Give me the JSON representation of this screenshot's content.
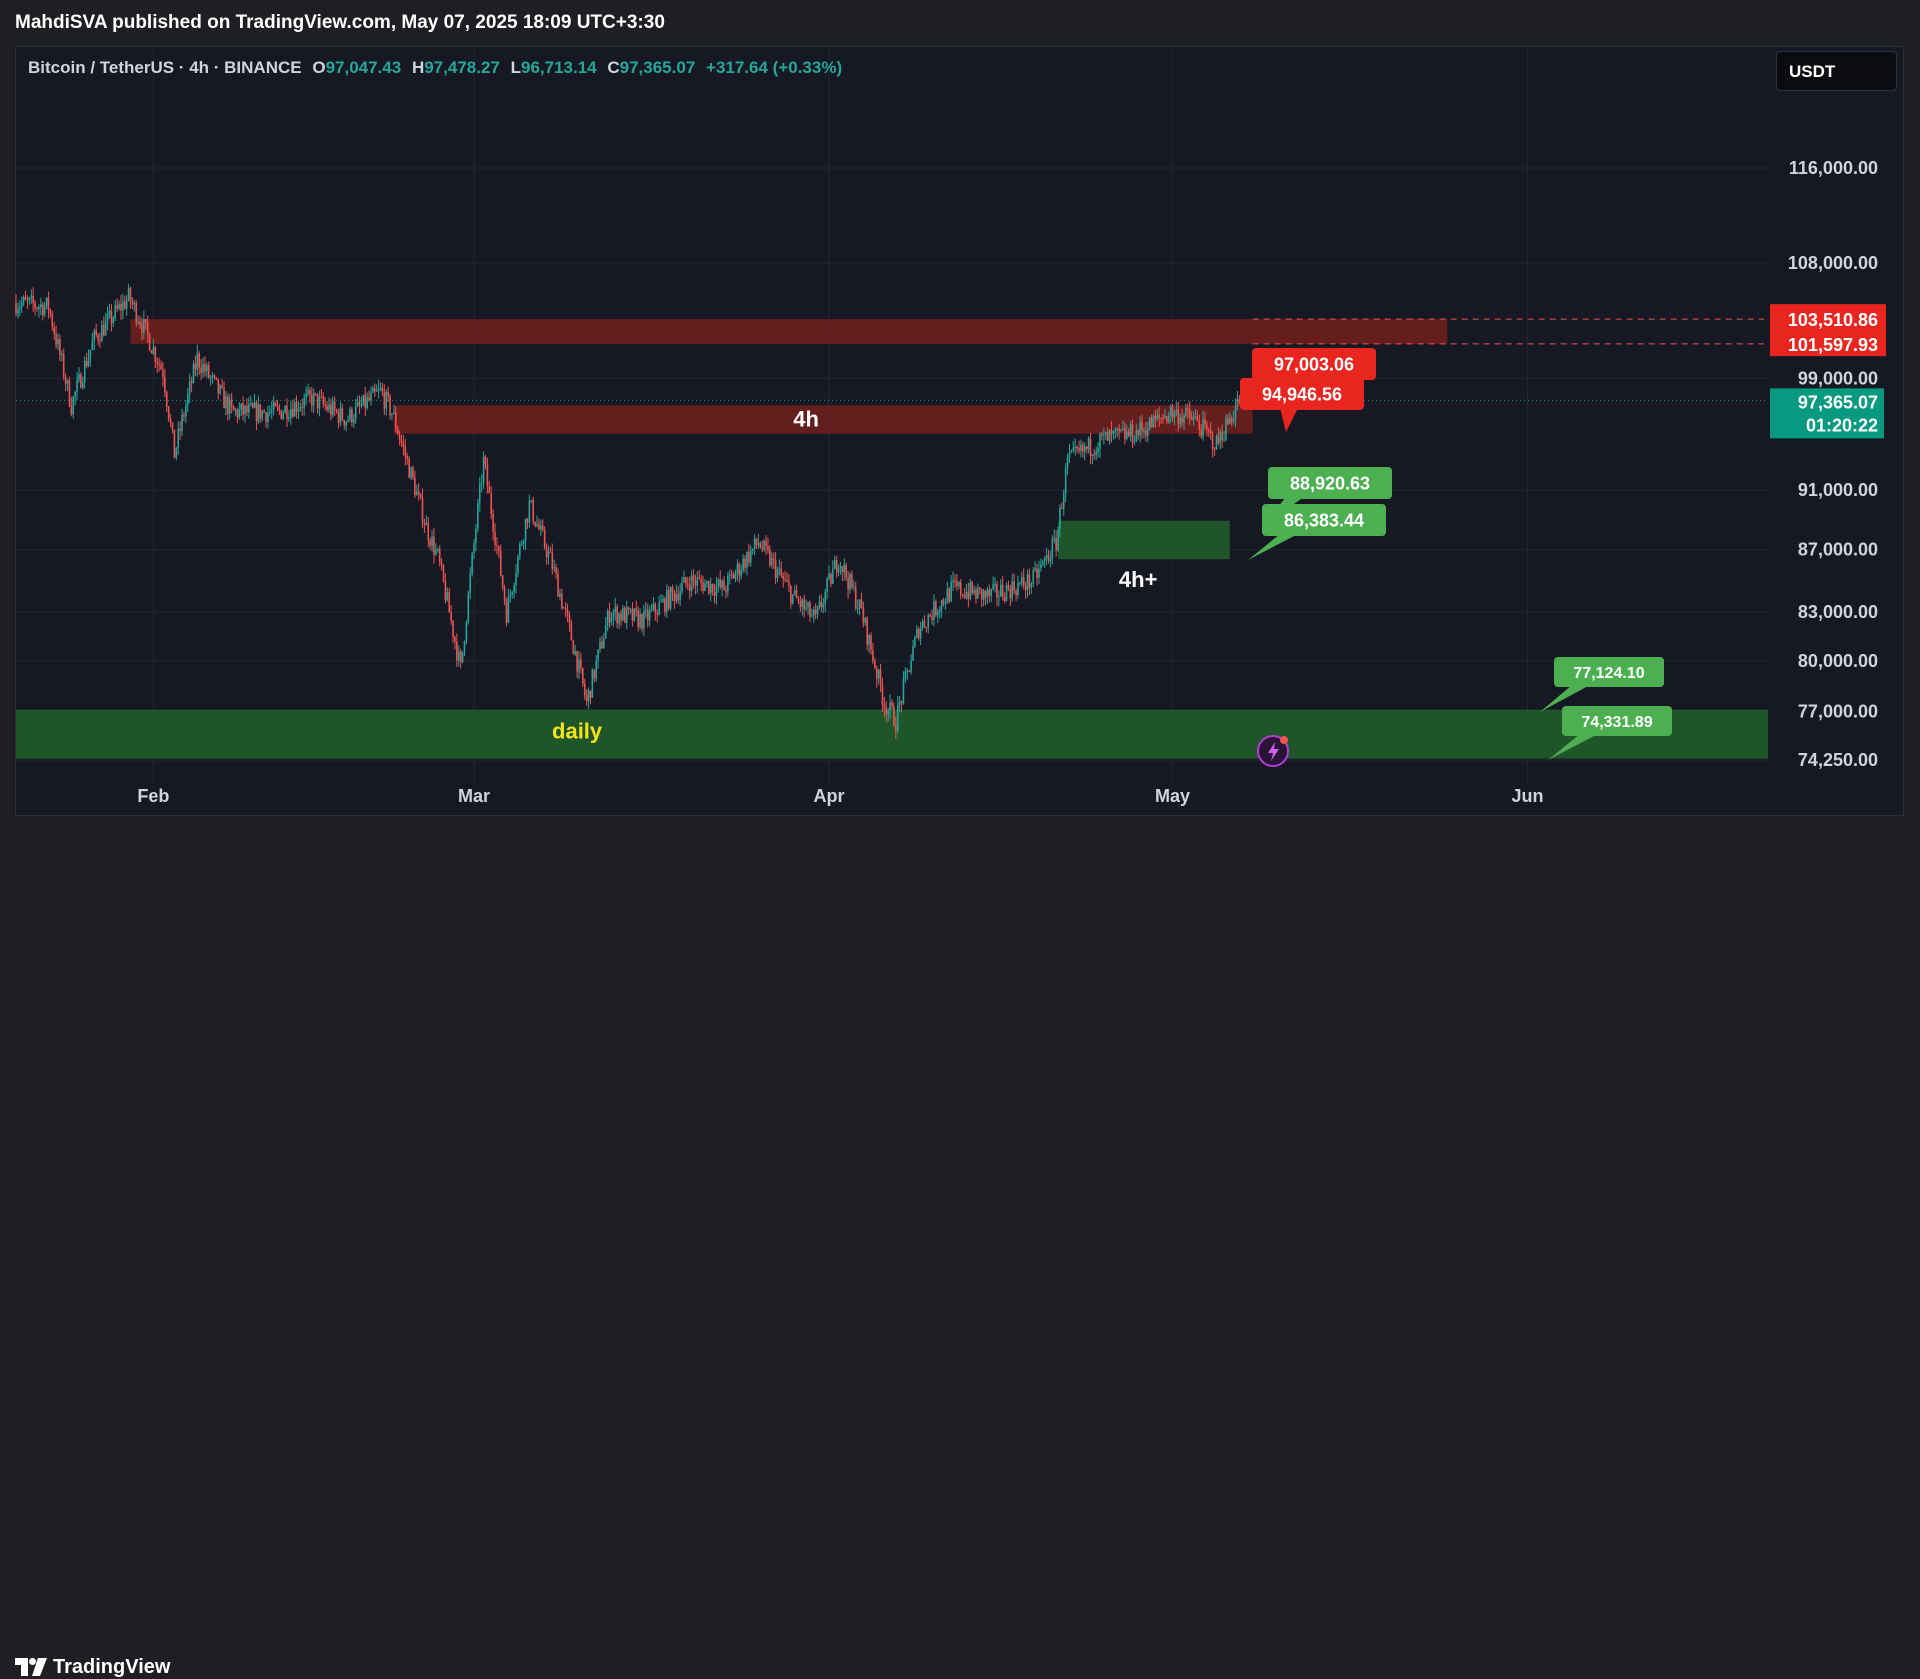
{
  "header": {
    "published": "MahdiSVA published on TradingView.com, May 07, 2025 18:09 UTC+3:30"
  },
  "symbol": {
    "name": "Bitcoin / TetherUS · 4h · BINANCE",
    "o_key": "O",
    "o": "97,047.43",
    "h_key": "H",
    "h": "97,478.27",
    "l_key": "L",
    "l": "96,713.14",
    "c_key": "C",
    "c": "97,365.07",
    "change": "+317.64 (+0.33%)"
  },
  "currency_button": "USDT",
  "footer": {
    "brand": "TradingView"
  },
  "colors": {
    "background": "#161923",
    "up": "#26a69a",
    "down": "#ef5350",
    "resistance_zone": "#6b1e1e",
    "support_zone": "#1f5a2a",
    "red_label": "#e8261f",
    "green_label": "#4caf50",
    "current_price": "#089981"
  },
  "chart_data": {
    "type": "candlestick",
    "title": "Bitcoin / TetherUS · 4h · BINANCE",
    "x_range": [
      "2025-01-20",
      "2025-06-22"
    ],
    "x_ticks": [
      {
        "label": "Feb",
        "date": "2025-02-01"
      },
      {
        "label": "Mar",
        "date": "2025-03-01"
      },
      {
        "label": "Apr",
        "date": "2025-04-01"
      },
      {
        "label": "May",
        "date": "2025-05-01"
      },
      {
        "label": "Jun",
        "date": "2025-06-01"
      }
    ],
    "y_ticks": [
      "116,000.00",
      "108,000.00",
      "99,000.00",
      "91,000.00",
      "87,000.00",
      "83,000.00",
      "80,000.00",
      "77,000.00",
      "74,250.00"
    ],
    "y_scale": "log",
    "grid": true,
    "price_path": [
      {
        "date": "2025-01-20",
        "price": 104800
      },
      {
        "date": "2025-01-23",
        "price": 104500
      },
      {
        "date": "2025-01-25",
        "price": 97000
      },
      {
        "date": "2025-01-27",
        "price": 102000
      },
      {
        "date": "2025-01-30",
        "price": 105200
      },
      {
        "date": "2025-01-31",
        "price": 103500
      },
      {
        "date": "2025-02-02",
        "price": 99500
      },
      {
        "date": "2025-02-03",
        "price": 93500
      },
      {
        "date": "2025-02-05",
        "price": 100500
      },
      {
        "date": "2025-02-08",
        "price": 96500
      },
      {
        "date": "2025-02-12",
        "price": 96500
      },
      {
        "date": "2025-02-15",
        "price": 97500
      },
      {
        "date": "2025-02-18",
        "price": 96000
      },
      {
        "date": "2025-02-21",
        "price": 98000
      },
      {
        "date": "2025-02-22",
        "price": 96500
      },
      {
        "date": "2025-02-25",
        "price": 88500
      },
      {
        "date": "2025-02-26",
        "price": 86500
      },
      {
        "date": "2025-02-28",
        "price": 79500
      },
      {
        "date": "2025-03-02",
        "price": 93000
      },
      {
        "date": "2025-03-04",
        "price": 83000
      },
      {
        "date": "2025-03-06",
        "price": 90000
      },
      {
        "date": "2025-03-08",
        "price": 86000
      },
      {
        "date": "2025-03-10",
        "price": 80500
      },
      {
        "date": "2025-03-11",
        "price": 77500
      },
      {
        "date": "2025-03-13",
        "price": 83000
      },
      {
        "date": "2025-03-16",
        "price": 82500
      },
      {
        "date": "2025-03-20",
        "price": 85000
      },
      {
        "date": "2025-03-23",
        "price": 84500
      },
      {
        "date": "2025-03-26",
        "price": 87500
      },
      {
        "date": "2025-03-29",
        "price": 84000
      },
      {
        "date": "2025-03-31",
        "price": 82500
      },
      {
        "date": "2025-04-02",
        "price": 86500
      },
      {
        "date": "2025-04-04",
        "price": 83000
      },
      {
        "date": "2025-04-06",
        "price": 77500
      },
      {
        "date": "2025-04-07",
        "price": 76500
      },
      {
        "date": "2025-04-09",
        "price": 82000
      },
      {
        "date": "2025-04-12",
        "price": 84500
      },
      {
        "date": "2025-04-15",
        "price": 84000
      },
      {
        "date": "2025-04-19",
        "price": 85000
      },
      {
        "date": "2025-04-21",
        "price": 87500
      },
      {
        "date": "2025-04-22",
        "price": 93000
      },
      {
        "date": "2025-04-25",
        "price": 94500
      },
      {
        "date": "2025-04-28",
        "price": 95000
      },
      {
        "date": "2025-05-01",
        "price": 96500
      },
      {
        "date": "2025-05-03",
        "price": 96000
      },
      {
        "date": "2025-05-05",
        "price": 94200
      },
      {
        "date": "2025-05-07",
        "price": 97365
      }
    ],
    "zones": [
      {
        "label": "",
        "from_date": "2025-01-30",
        "to_date": "2025-05-25",
        "low": 101597.93,
        "high": 103510.86,
        "kind": "resistance"
      },
      {
        "label": "4h",
        "from_date": "2025-02-22",
        "to_date": "2025-05-08",
        "low": 94946.56,
        "high": 97003.06,
        "kind": "resistance"
      },
      {
        "label": "4h+",
        "from_date": "2025-04-21",
        "to_date": "2025-05-06",
        "low": 86383.44,
        "high": 88920.63,
        "kind": "support"
      },
      {
        "label": "daily",
        "from_date": "2025-01-20",
        "to_date": "2025-06-22",
        "low": 74331.89,
        "high": 77124.1,
        "kind": "support"
      }
    ],
    "price_labels": [
      {
        "text": "97,003.06",
        "color": "red",
        "date": "2025-05-10",
        "price": 97003.06
      },
      {
        "text": "94,946.56",
        "color": "red",
        "date": "2025-05-11",
        "price": 94946.56
      },
      {
        "text": "88,920.63",
        "color": "green",
        "date": "2025-05-08",
        "price": 88920.63
      },
      {
        "text": "86,383.44",
        "color": "green",
        "date": "2025-05-08",
        "price": 86383.44
      },
      {
        "text": "77,124.10",
        "color": "green",
        "date": "2025-05-30",
        "price": 77124.1
      },
      {
        "text": "74,331.89",
        "color": "green",
        "date": "2025-05-30",
        "price": 74331.89
      }
    ],
    "axis_markers": [
      {
        "text": "103,510.86",
        "price": 103510.86,
        "color": "red"
      },
      {
        "text": "101,597.93",
        "price": 101597.93,
        "color": "red"
      }
    ],
    "current_price": {
      "text": "97,365.07",
      "countdown": "01:20:22",
      "price": 97365.07
    }
  }
}
